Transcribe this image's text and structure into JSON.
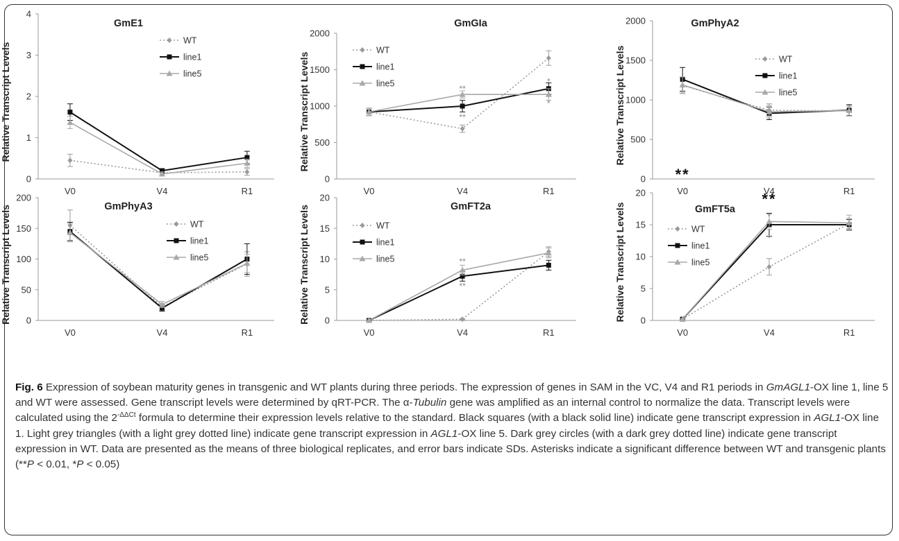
{
  "chart_data": [
    {
      "type": "line",
      "title": "GmE1",
      "ylabel": "Relative Transcript Levels",
      "categories": [
        "V0",
        "V4",
        "R1"
      ],
      "ylim": [
        0,
        4
      ],
      "yticks": [
        0,
        1,
        2,
        3,
        4
      ],
      "legend_position": "top-right",
      "series": [
        {
          "name": "WT",
          "values": [
            0.45,
            0.15,
            0.17
          ],
          "errors": [
            0.15,
            0.05,
            0.08
          ]
        },
        {
          "name": "line1",
          "values": [
            1.62,
            0.2,
            0.52
          ],
          "errors": [
            0.2,
            0.05,
            0.15
          ]
        },
        {
          "name": "line5",
          "values": [
            1.37,
            0.12,
            0.38
          ],
          "errors": [
            0.15,
            0.05,
            0.1
          ]
        }
      ],
      "annotations": []
    },
    {
      "type": "line",
      "title": "GmGIa",
      "ylabel": "Relative Transcript Levels",
      "categories": [
        "V0",
        "V4",
        "R1"
      ],
      "ylim": [
        0,
        2000
      ],
      "yticks": [
        0,
        500,
        1000,
        1500,
        2000
      ],
      "legend_position": "top-left",
      "series": [
        {
          "name": "WT",
          "values": [
            920,
            690,
            1660
          ],
          "errors": [
            50,
            50,
            100
          ]
        },
        {
          "name": "line1",
          "values": [
            920,
            1000,
            1240
          ],
          "errors": [
            50,
            80,
            80
          ]
        },
        {
          "name": "line5",
          "values": [
            920,
            1160,
            1160
          ],
          "errors": [
            50,
            50,
            80
          ]
        }
      ],
      "annotations": [
        {
          "text": "**",
          "x": "V4",
          "y": 1240
        },
        {
          "text": "**",
          "x": "V4",
          "y": 850
        },
        {
          "text": "*",
          "x": "R1",
          "y": 1340
        },
        {
          "text": "*",
          "x": "R1",
          "y": 1040
        }
      ]
    },
    {
      "type": "line",
      "title": "GmPhyA2",
      "ylabel": "Relative Transcript Levels",
      "categories": [
        "V0",
        "V4",
        "R1"
      ],
      "ylim": [
        0,
        2000
      ],
      "yticks": [
        0,
        500,
        1000,
        1500,
        2000
      ],
      "legend_position": "top-right",
      "series": [
        {
          "name": "WT",
          "values": [
            1180,
            870,
            860
          ],
          "errors": [
            100,
            80,
            60
          ]
        },
        {
          "name": "line1",
          "values": [
            1260,
            830,
            870
          ],
          "errors": [
            150,
            80,
            70
          ]
        },
        {
          "name": "line5",
          "values": [
            1190,
            850,
            865
          ],
          "errors": [
            100,
            80,
            60
          ]
        }
      ],
      "annotations": [
        {
          "text": "**",
          "x": "V0",
          "y": 60
        },
        {
          "text": "**",
          "x": "V4",
          "y": -250
        }
      ]
    },
    {
      "type": "line",
      "title": "GmPhyA3",
      "ylabel": "Relative Transcript Levels",
      "categories": [
        "V0",
        "V4",
        "R1"
      ],
      "ylim": [
        0,
        200
      ],
      "yticks": [
        0,
        50,
        100,
        150,
        200
      ],
      "legend_position": "top-right",
      "series": [
        {
          "name": "WT",
          "values": [
            155,
            22,
            92
          ],
          "errors": [
            25,
            5,
            20
          ]
        },
        {
          "name": "line1",
          "values": [
            145,
            20,
            100
          ],
          "errors": [
            15,
            5,
            25
          ]
        },
        {
          "name": "line5",
          "values": [
            143,
            26,
            93
          ],
          "errors": [
            15,
            5,
            15
          ]
        }
      ],
      "annotations": []
    },
    {
      "type": "line",
      "title": "GmFT2a",
      "ylabel": "Relative Transcript Levels",
      "categories": [
        "V0",
        "V4",
        "R1"
      ],
      "ylim": [
        0,
        20
      ],
      "yticks": [
        0,
        5,
        10,
        15,
        20
      ],
      "legend_position": "top-left",
      "series": [
        {
          "name": "WT",
          "values": [
            0,
            0.2,
            11.2
          ],
          "errors": [
            0.1,
            0.1,
            0.8
          ]
        },
        {
          "name": "line1",
          "values": [
            0,
            7.2,
            9
          ],
          "errors": [
            0.1,
            0.8,
            0.8
          ]
        },
        {
          "name": "line5",
          "values": [
            0,
            8.2,
            11
          ],
          "errors": [
            0.1,
            0.8,
            0.8
          ]
        }
      ],
      "annotations": [
        {
          "text": "**",
          "x": "V4",
          "y": 9.6
        },
        {
          "text": "**",
          "x": "V4",
          "y": 5.6
        }
      ]
    },
    {
      "type": "line",
      "title": "GmFT5a",
      "ylabel": "Relative Transcript Levels",
      "categories": [
        "V0",
        "V4",
        "R1"
      ],
      "ylim": [
        0,
        20
      ],
      "yticks": [
        0,
        5,
        10,
        15,
        20
      ],
      "legend_position": "top-left",
      "series": [
        {
          "name": "WT",
          "values": [
            0.2,
            8.4,
            15.2
          ],
          "errors": [
            0.1,
            1.3,
            0.8
          ]
        },
        {
          "name": "line1",
          "values": [
            0.2,
            15,
            15
          ],
          "errors": [
            0.1,
            1.8,
            0.8
          ]
        },
        {
          "name": "line5",
          "values": [
            0.2,
            15.5,
            15.3
          ],
          "errors": [
            0.1,
            1.2,
            1.2
          ]
        }
      ],
      "annotations": [
        {
          "text": "*",
          "x": "V4",
          "y": 16.3
        },
        {
          "text": "*",
          "x": "V4",
          "y": 12.9
        }
      ]
    }
  ],
  "series_styles": {
    "WT": {
      "color": "#9a9a9a",
      "marker": "diamond",
      "dash": "2,3"
    },
    "line1": {
      "color": "#111111",
      "marker": "square",
      "dash": ""
    },
    "line5": {
      "color": "#a8a8a8",
      "marker": "triangle",
      "dash": ""
    }
  },
  "caption": {
    "label": "Fig. 6",
    "s1": " Expression of soybean maturity genes in transgenic and WT plants during three periods. The expression of genes in SAM in the VC, V4 and R1 periods in ",
    "s1i": "GmAGL1",
    "s2": "-OX line 1, line 5 and WT were assessed. Gene transcript levels were determined by qRT-PCR. The α-",
    "s2i": "Tubulin",
    "s3": " gene was amplified as an internal control to normalize the data. Transcript levels were calculated using the 2",
    "s3sup": "-ΔΔCt",
    "s4": " formula to determine their expression levels relative to the standard. Black squares (with a black solid line) indicate gene transcript expression in ",
    "s4i": "AGL1",
    "s5": "-OX line 1. Light grey triangles (with a light grey dotted line) indicate gene transcript expression in ",
    "s5i": "AGL1",
    "s6": "-OX line 5. Dark grey circles (with a dark grey dotted line) indicate gene transcript expression in WT. Data are presented as the means of three biological replicates, and error bars indicate SDs. Asterisks indicate a significant difference between WT and transgenic plants (**",
    "s6i": "P",
    "s7": " < 0.01, *",
    "s7i": "P",
    "s8": " < 0.05)"
  }
}
